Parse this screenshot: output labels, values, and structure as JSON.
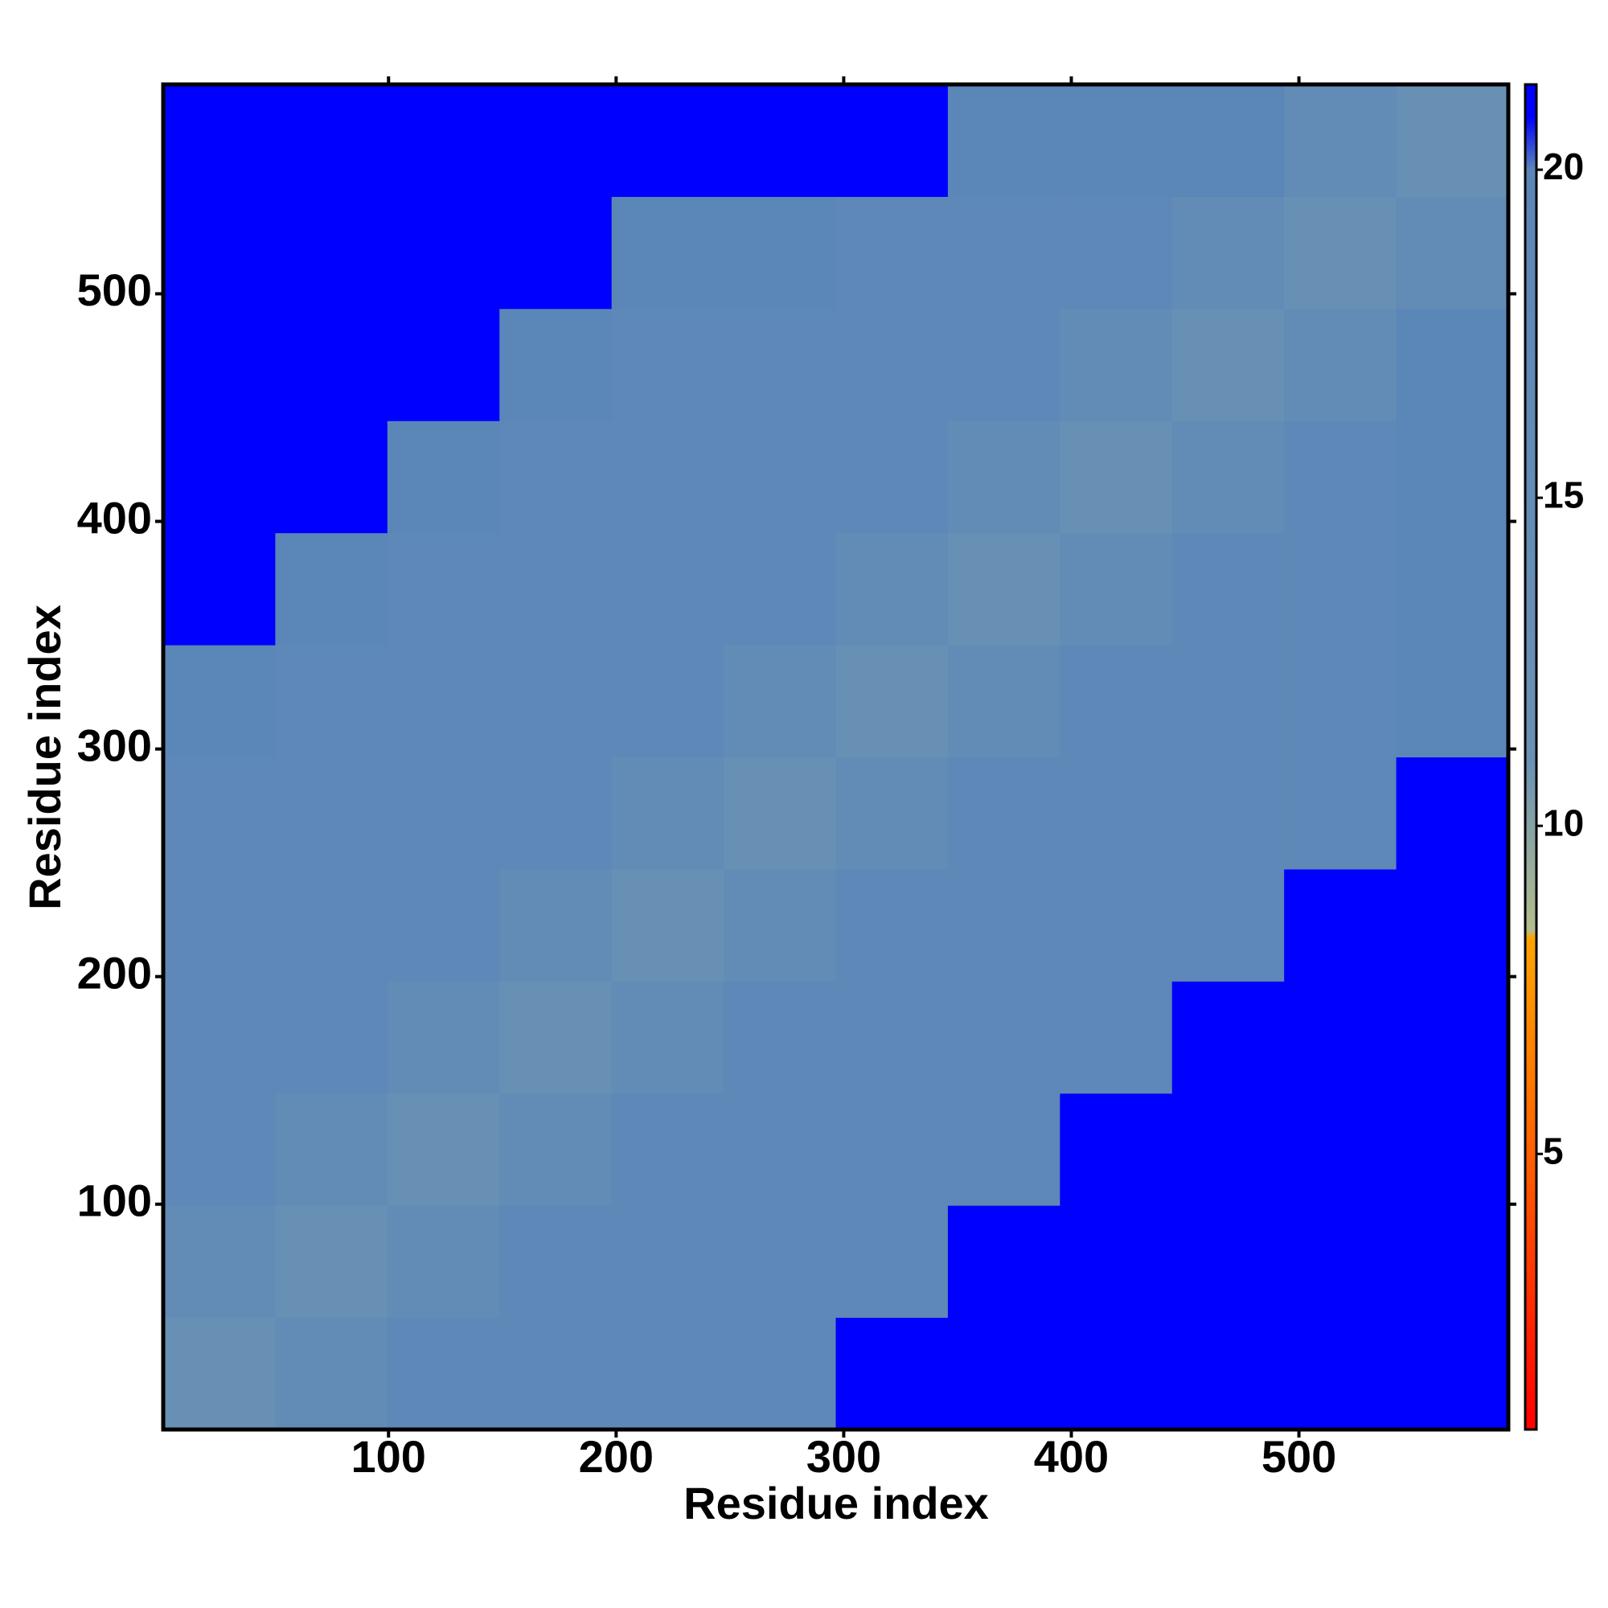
{
  "chart_data": {
    "type": "heatmap",
    "xlabel": "Residue index",
    "ylabel": "Residue index",
    "xlim": [
      1,
      592
    ],
    "ylim": [
      1,
      592
    ],
    "xticks": [
      100,
      200,
      300,
      400,
      500
    ],
    "yticks": [
      100,
      200,
      300,
      400,
      500
    ],
    "xbins": [
      1,
      50.25,
      99.5,
      148.75,
      198,
      247.25,
      296.5,
      345.75,
      395,
      444.25,
      493.5,
      542.75,
      592
    ],
    "ybins": [
      1,
      50.25,
      99.5,
      148.75,
      198,
      247.25,
      296.5,
      345.75,
      395,
      444.25,
      493.5,
      542.75,
      592
    ],
    "z": [
      [
        12,
        16,
        18.5,
        18.5,
        18.5,
        18.5,
        21,
        21,
        21,
        21,
        21,
        21
      ],
      [
        16,
        12,
        16,
        18.5,
        18.5,
        18.5,
        18.5,
        21,
        21,
        21,
        21,
        21
      ],
      [
        18.5,
        16,
        12,
        16,
        18.5,
        18.5,
        18.5,
        18.5,
        21,
        21,
        21,
        21
      ],
      [
        18.5,
        18.5,
        16,
        12,
        16,
        18.5,
        18.5,
        18.5,
        18.5,
        21,
        21,
        21
      ],
      [
        18.5,
        18.5,
        18.5,
        16,
        12,
        16,
        18.5,
        18.5,
        18.5,
        18.5,
        21,
        21
      ],
      [
        18.5,
        18.5,
        18.5,
        18.5,
        16,
        12,
        16,
        18.5,
        18.5,
        18.5,
        18.5,
        21
      ],
      [
        20,
        18.5,
        18.5,
        18.5,
        18.5,
        16,
        12,
        16,
        18.5,
        18.5,
        18.5,
        20
      ],
      [
        21,
        20,
        18.5,
        18.5,
        18.5,
        18.5,
        16,
        12,
        16,
        18.5,
        18.5,
        20
      ],
      [
        21,
        21,
        20,
        18.5,
        18.5,
        18.5,
        18.5,
        16,
        12,
        16,
        18.5,
        20
      ],
      [
        21,
        21,
        21,
        20,
        18.5,
        18.5,
        18.5,
        18.5,
        16,
        12,
        16,
        20
      ],
      [
        21,
        21,
        21,
        21,
        20,
        20,
        18.5,
        18.5,
        18.5,
        16,
        12,
        16
      ],
      [
        21,
        21,
        21,
        21,
        21,
        21,
        21,
        20,
        20,
        20,
        16,
        12
      ]
    ],
    "zlim": [
      0.8,
      21.3
    ],
    "zticks": [
      5,
      10,
      15,
      20
    ],
    "colorscale": [
      {
        "value": 0.8,
        "color": "#ff0000"
      },
      {
        "value": 5,
        "color": "#ff6000"
      },
      {
        "value": 8.3,
        "color": "#ffa500"
      },
      {
        "value": 8.4,
        "color": "#b4bd8c"
      },
      {
        "value": 11,
        "color": "#6a91b4"
      },
      {
        "value": 20,
        "color": "#5b86b8"
      },
      {
        "value": 20.8,
        "color": "#0000ff"
      },
      {
        "value": 21.3,
        "color": "#0000ff"
      }
    ]
  }
}
